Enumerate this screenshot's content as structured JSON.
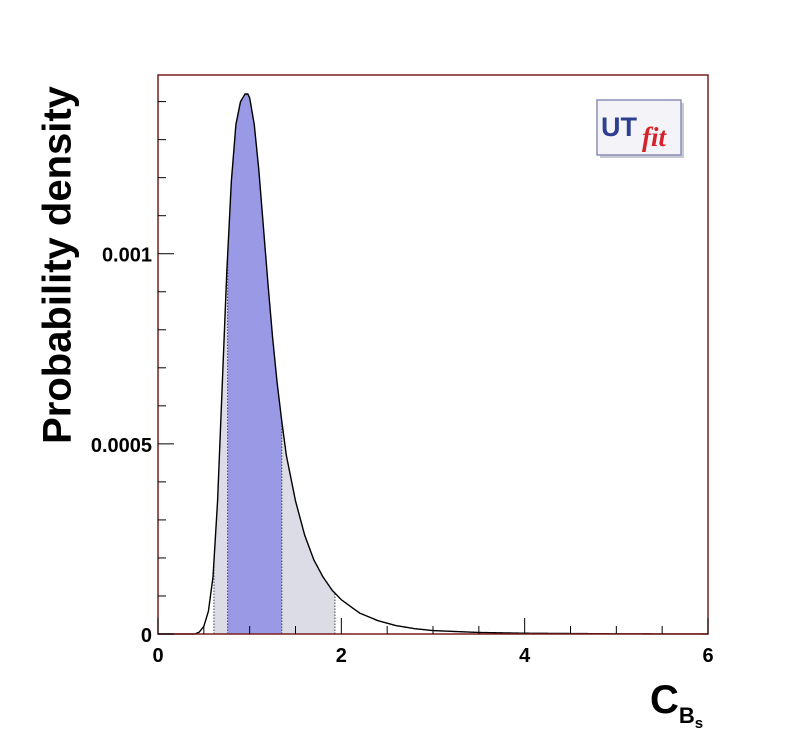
{
  "chart_data": {
    "type": "area",
    "xlabel": "C",
    "xlabel_sub": "B",
    "xlabel_subsub": "s",
    "ylabel": "Probability density",
    "xlim": [
      0,
      6
    ],
    "ylim": [
      0,
      0.00147
    ],
    "x_ticks": [
      0,
      2,
      4,
      6
    ],
    "x_tick_labels": [
      "0",
      "2",
      "4",
      "6"
    ],
    "y_ticks": [
      0,
      0.0005,
      0.001
    ],
    "y_tick_labels": [
      "0",
      "0.0005",
      "0.001"
    ],
    "x_minor_step": 0.5,
    "y_minor_step": 0.0001,
    "peak": {
      "x": 0.98,
      "y": 0.00142
    },
    "intervals": {
      "68": [
        0.76,
        1.35
      ],
      "95": [
        0.61,
        1.93
      ]
    },
    "curve": {
      "x": [
        0.4,
        0.45,
        0.5,
        0.55,
        0.6,
        0.65,
        0.7,
        0.75,
        0.8,
        0.85,
        0.9,
        0.95,
        0.98,
        1.0,
        1.05,
        1.1,
        1.15,
        1.2,
        1.25,
        1.3,
        1.35,
        1.4,
        1.5,
        1.6,
        1.7,
        1.8,
        1.9,
        2.0,
        2.2,
        2.4,
        2.6,
        2.8,
        3.0,
        3.5,
        4.0,
        5.0,
        6.0
      ],
      "y": [
        0.0,
        5e-06,
        2e-05,
        6e-05,
        0.00015,
        0.00035,
        0.00065,
        0.00095,
        0.00119,
        0.00134,
        0.0014,
        0.00142,
        0.00142,
        0.00141,
        0.00134,
        0.00122,
        0.00107,
        0.00092,
        0.00078,
        0.00066,
        0.00056,
        0.00047,
        0.00035,
        0.00026,
        0.000195,
        0.00015,
        0.000115,
        9e-05,
        5.5e-05,
        3.5e-05,
        2.2e-05,
        1.4e-05,
        9e-06,
        4e-06,
        2e-06,
        5e-07,
        0.0
      ]
    },
    "colors": {
      "interval68": "#9999e6",
      "interval95": "#dcdce6",
      "curve": "#000000",
      "frame": "#7a1f1f"
    }
  },
  "logo": {
    "part1": "UT",
    "part2": "fit"
  }
}
